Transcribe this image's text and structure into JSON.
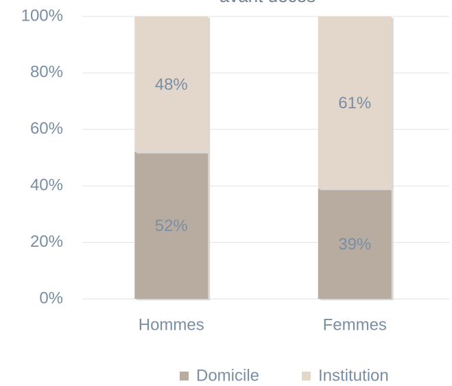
{
  "chart_data": {
    "type": "stacked_bar",
    "title": "avant décès",
    "categories": [
      "Hommes",
      "Femmes"
    ],
    "series": [
      {
        "name": "Domicile",
        "color": "#b8aca1",
        "values": [
          52,
          39
        ],
        "value_labels": [
          "52%",
          "39%"
        ]
      },
      {
        "name": "Institution",
        "color": "#e3d6ca",
        "values": [
          48,
          61
        ],
        "value_labels": [
          "48%",
          "61%"
        ]
      }
    ],
    "ylim": [
      0,
      100
    ],
    "yticks": [
      {
        "value": 0,
        "label": "0%"
      },
      {
        "value": 20,
        "label": "20%"
      },
      {
        "value": 40,
        "label": "40%"
      },
      {
        "value": 60,
        "label": "60%"
      },
      {
        "value": 80,
        "label": "80%"
      },
      {
        "value": 100,
        "label": "100%"
      }
    ],
    "grid": true,
    "legend": "bottom"
  }
}
